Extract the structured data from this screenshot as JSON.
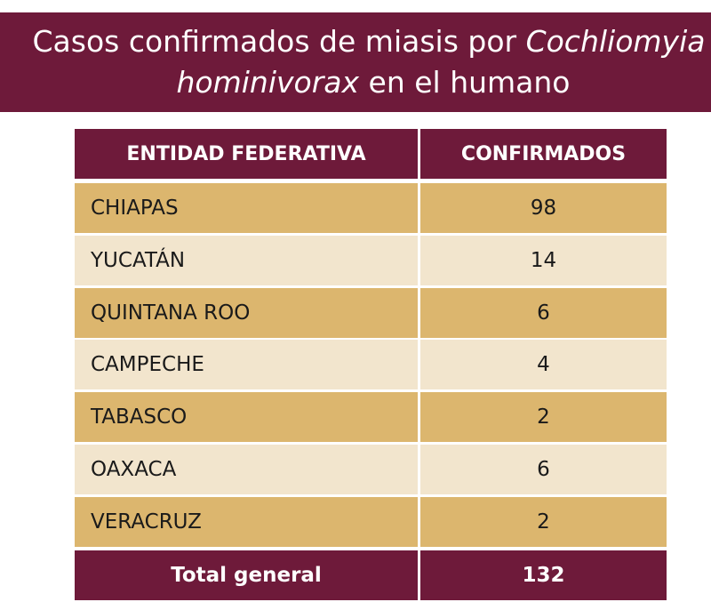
{
  "title": {
    "line1_prefix": "Casos confirmados de miasis por ",
    "line1_italic": "Cochliomyia",
    "line2_italic": "hominivorax",
    "line2_suffix": " en el humano"
  },
  "colors": {
    "brand": "#6e1a3a",
    "row_dark": "#dcb66e",
    "row_light": "#f2e5cd"
  },
  "chart_data": {
    "type": "table",
    "title": "Casos confirmados de miasis por Cochliomyia hominivorax en el humano",
    "columns": [
      "ENTIDAD FEDERATIVA",
      "CONFIRMADOS"
    ],
    "rows": [
      {
        "entidad": "CHIAPAS",
        "confirmados": "98"
      },
      {
        "entidad": "YUCATÁN",
        "confirmados": "14"
      },
      {
        "entidad": "QUINTANA ROO",
        "confirmados": "6"
      },
      {
        "entidad": "CAMPECHE",
        "confirmados": "4"
      },
      {
        "entidad": "TABASCO",
        "confirmados": "2"
      },
      {
        "entidad": "OAXACA",
        "confirmados": "6"
      },
      {
        "entidad": "VERACRUZ",
        "confirmados": "2"
      }
    ],
    "total": {
      "label": "Total general",
      "value": "132"
    }
  }
}
